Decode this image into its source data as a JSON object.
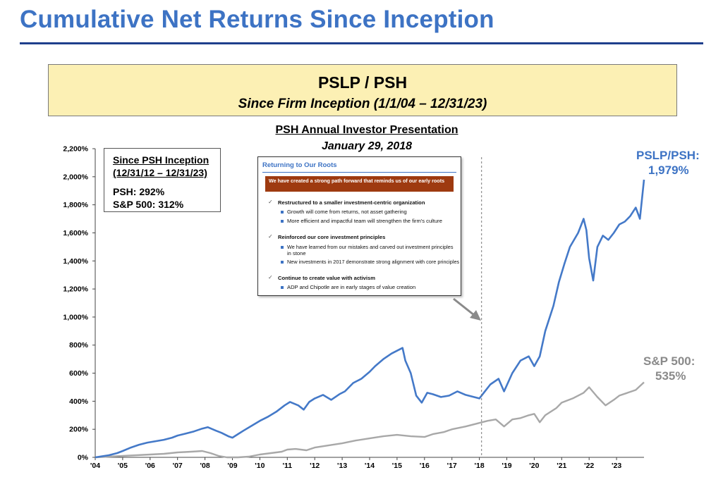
{
  "slide": {
    "title": "Cumulative Net Returns Since Inception",
    "header_main": "PSLP / PSH",
    "header_sub": "Since Firm Inception (1/1/04 – 12/31/23)"
  },
  "inset": {
    "title": "Since PSH Inception",
    "dates": "(12/31/12 – 12/31/23)",
    "psh": "PSH: 292%",
    "sp": "S&P 500: 312%"
  },
  "presentation": {
    "title": "PSH Annual Investor Presentation",
    "date": "January 29, 2018",
    "slide_title": "Returning to Our Roots",
    "banner": "We have created a strong path forward that reminds us of our early roots",
    "points": [
      {
        "heading": "Restructured to a smaller investment-centric organization",
        "bullets": [
          "Growth will come from returns, not asset gathering",
          "More efficient and impactful team will strengthen the firm's culture"
        ]
      },
      {
        "heading": "Reinforced our core investment principles",
        "bullets": [
          "We have learned from our mistakes and carved out investment principles",
          "in stone",
          "New investments in 2017 demonstrate strong alignment with core principles"
        ]
      },
      {
        "heading": "Continue to create value with activism",
        "bullets": [
          "ADP and Chipotle are in early stages of value creation"
        ]
      }
    ]
  },
  "end_labels": {
    "psh_name": "PSLP/PSH:",
    "psh_value": "1,979%",
    "sp_name": "S&P 500:",
    "sp_value": "535%"
  },
  "chart_data": {
    "type": "line",
    "ylim": [
      0,
      2200
    ],
    "xlim": [
      2004.0,
      2024.0
    ],
    "y_ticks": [
      0,
      200,
      400,
      600,
      800,
      1000,
      1200,
      1400,
      1600,
      1800,
      2000,
      2200
    ],
    "y_tick_labels": [
      "0%",
      "200%",
      "400%",
      "600%",
      "800%",
      "1,000%",
      "1,200%",
      "1,400%",
      "1,600%",
      "1,800%",
      "2,000%",
      "2,200%"
    ],
    "x_ticks": [
      2004,
      2005,
      2006,
      2007,
      2008,
      2009,
      2010,
      2011,
      2012,
      2013,
      2014,
      2015,
      2016,
      2017,
      2018,
      2019,
      2020,
      2021,
      2022,
      2023
    ],
    "x_tick_labels": [
      "'04",
      "'05",
      "'06",
      "'07",
      "'08",
      "'09",
      "'10",
      "'11",
      "'12",
      "'13",
      "'14",
      "'15",
      "'16",
      "'17",
      "'18",
      "'19",
      "'20",
      "'21",
      "'22",
      "'23"
    ],
    "marker_line_x": 2018.08,
    "colors": {
      "pslp_psh": "#4479c8",
      "sp500": "#a8a8a8",
      "axis": "#444444"
    },
    "series": [
      {
        "name": "PSLP/PSH",
        "x": [
          2004.0,
          2004.5,
          2004.8,
          2005.0,
          2005.3,
          2005.6,
          2005.9,
          2006.2,
          2006.5,
          2006.8,
          2007.0,
          2007.3,
          2007.6,
          2007.9,
          2008.1,
          2008.4,
          2008.6,
          2008.85,
          2009.0,
          2009.2,
          2009.4,
          2009.7,
          2010.0,
          2010.3,
          2010.6,
          2010.9,
          2011.1,
          2011.4,
          2011.6,
          2011.8,
          2012.0,
          2012.3,
          2012.6,
          2012.9,
          2013.1,
          2013.4,
          2013.7,
          2014.0,
          2014.2,
          2014.5,
          2014.8,
          2015.0,
          2015.2,
          2015.3,
          2015.5,
          2015.7,
          2015.9,
          2016.1,
          2016.3,
          2016.6,
          2016.9,
          2017.2,
          2017.5,
          2017.8,
          2018.0,
          2018.2,
          2018.4,
          2018.7,
          2018.9,
          2019.2,
          2019.5,
          2019.8,
          2020.0,
          2020.2,
          2020.4,
          2020.7,
          2020.9,
          2021.1,
          2021.3,
          2021.6,
          2021.8,
          2021.9,
          2022.0,
          2022.15,
          2022.3,
          2022.5,
          2022.7,
          2022.9,
          2023.1,
          2023.3,
          2023.5,
          2023.7,
          2023.85,
          2024.0
        ],
        "y": [
          0,
          15,
          30,
          45,
          70,
          90,
          105,
          115,
          125,
          140,
          155,
          170,
          185,
          205,
          215,
          190,
          175,
          150,
          140,
          165,
          190,
          225,
          260,
          290,
          325,
          370,
          395,
          370,
          340,
          395,
          420,
          445,
          410,
          450,
          470,
          530,
          560,
          610,
          650,
          700,
          740,
          760,
          780,
          690,
          600,
          440,
          390,
          460,
          450,
          430,
          440,
          470,
          445,
          430,
          420,
          470,
          520,
          560,
          470,
          600,
          690,
          720,
          650,
          720,
          900,
          1080,
          1250,
          1380,
          1500,
          1600,
          1700,
          1620,
          1420,
          1260,
          1500,
          1580,
          1550,
          1600,
          1660,
          1680,
          1720,
          1780,
          1700,
          1979
        ]
      },
      {
        "name": "S&P 500",
        "x": [
          2004.0,
          2004.5,
          2005.0,
          2005.5,
          2006.0,
          2006.5,
          2007.0,
          2007.5,
          2007.9,
          2008.2,
          2008.5,
          2008.8,
          2009.0,
          2009.2,
          2009.6,
          2010.0,
          2010.4,
          2010.8,
          2011.0,
          2011.3,
          2011.7,
          2012.0,
          2012.5,
          2013.0,
          2013.5,
          2014.0,
          2014.5,
          2015.0,
          2015.5,
          2016.0,
          2016.3,
          2016.7,
          2017.0,
          2017.5,
          2018.0,
          2018.3,
          2018.6,
          2018.9,
          2019.2,
          2019.5,
          2019.8,
          2020.0,
          2020.2,
          2020.4,
          2020.8,
          2021.0,
          2021.4,
          2021.8,
          2022.0,
          2022.3,
          2022.6,
          2022.9,
          2023.1,
          2023.4,
          2023.7,
          2024.0
        ],
        "y": [
          0,
          5,
          10,
          15,
          20,
          25,
          35,
          40,
          45,
          30,
          10,
          -20,
          -30,
          -15,
          5,
          20,
          30,
          40,
          55,
          60,
          50,
          70,
          85,
          100,
          120,
          135,
          150,
          160,
          150,
          145,
          165,
          180,
          200,
          220,
          245,
          260,
          270,
          220,
          270,
          280,
          300,
          310,
          250,
          300,
          350,
          390,
          420,
          460,
          500,
          430,
          370,
          410,
          440,
          460,
          480,
          535
        ]
      }
    ]
  }
}
